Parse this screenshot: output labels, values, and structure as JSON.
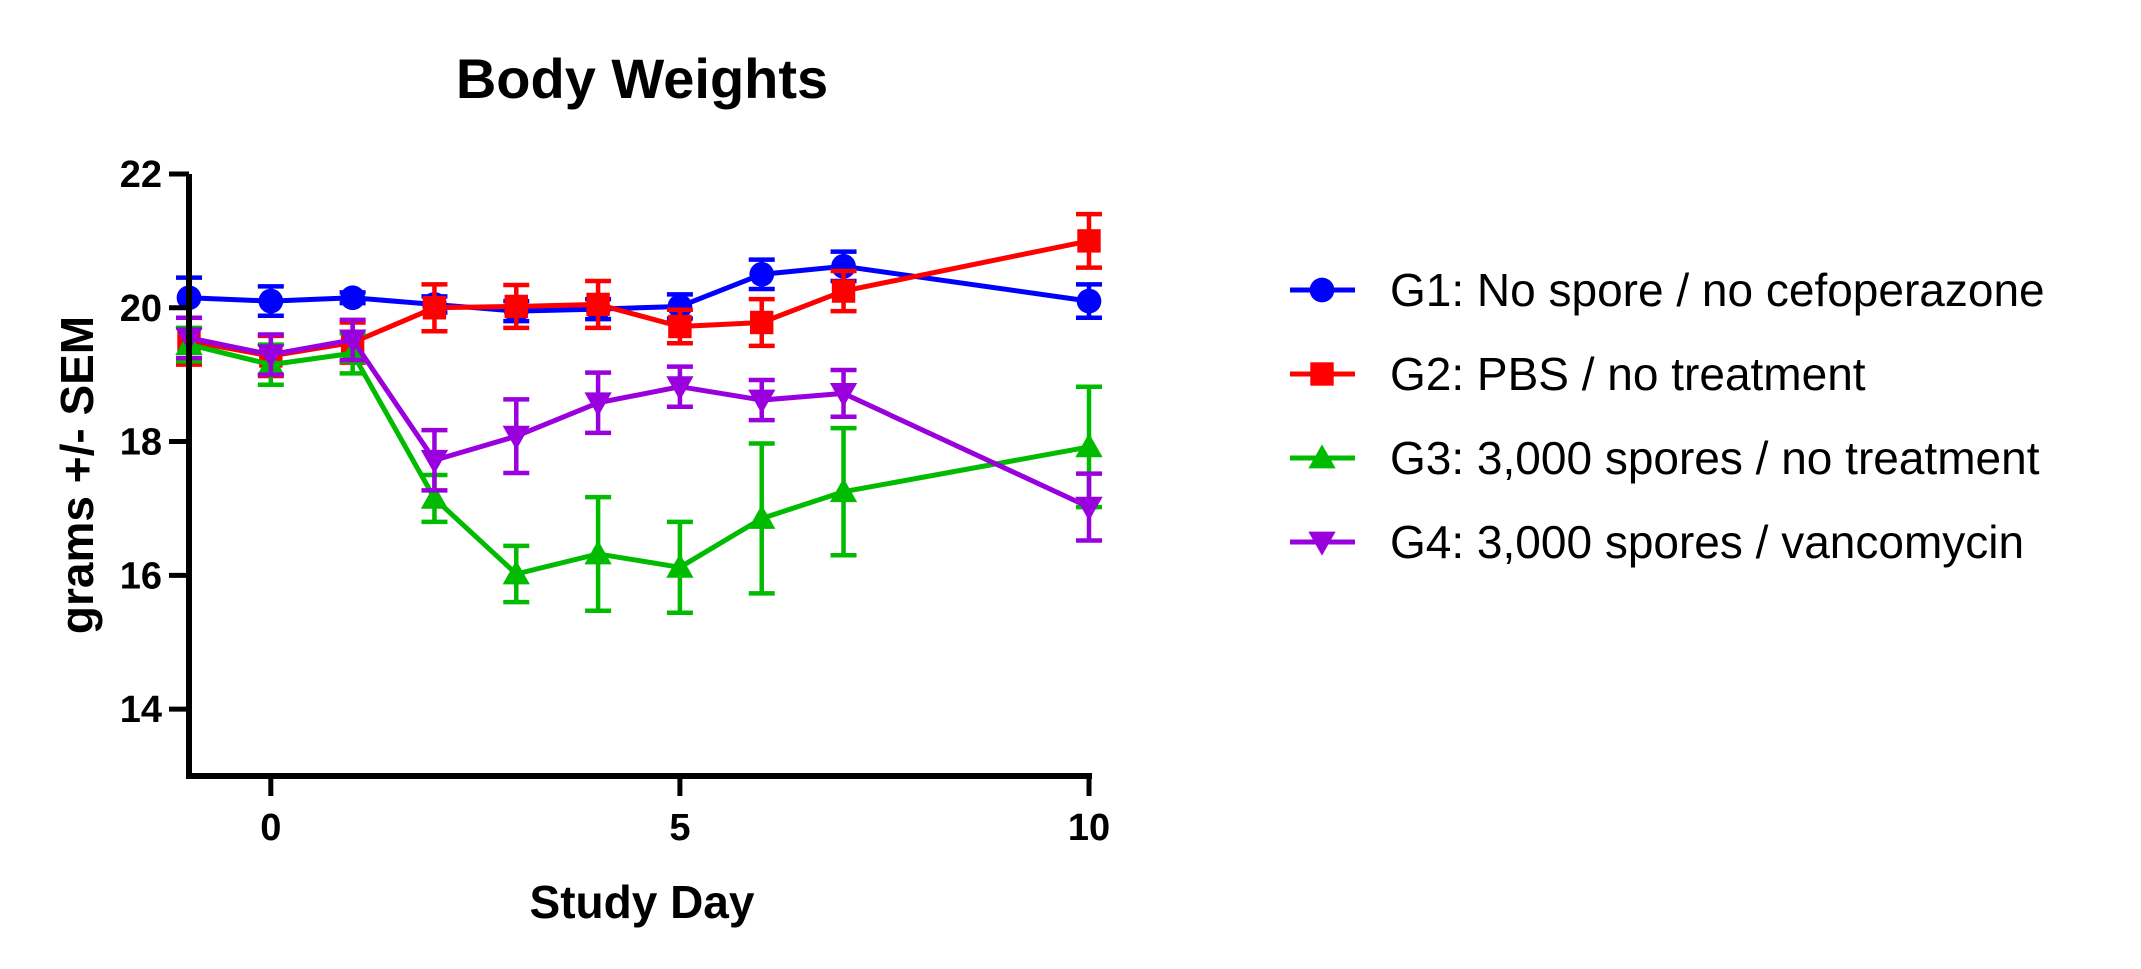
{
  "chart_data": {
    "type": "line",
    "title": "Body Weights",
    "xlabel": "Study Day",
    "ylabel": "grams +/- SEM",
    "xlim": [
      -1,
      10
    ],
    "ylim": [
      13,
      22
    ],
    "xticks": [
      0,
      5,
      10
    ],
    "yticks": [
      14,
      16,
      18,
      20,
      22
    ],
    "x": [
      -1,
      0,
      1,
      2,
      3,
      4,
      5,
      6,
      7,
      10
    ],
    "legend_position": "right",
    "grid": false,
    "error_bars": "SEM",
    "series": [
      {
        "name": "G1: No spore / no cefoperazone",
        "color": "#0000ff",
        "marker": "circle",
        "values": [
          20.15,
          20.1,
          20.15,
          20.05,
          19.95,
          19.98,
          20.02,
          20.5,
          20.62,
          20.1
        ],
        "errors": [
          0.3,
          0.22,
          0.08,
          0.12,
          0.15,
          0.15,
          0.18,
          0.22,
          0.22,
          0.25
        ]
      },
      {
        "name": "G2: PBS / no treatment",
        "color": "#ff0000",
        "marker": "square",
        "values": [
          19.5,
          19.28,
          19.48,
          20.0,
          20.02,
          20.05,
          19.72,
          19.78,
          20.25,
          21.0
        ],
        "errors": [
          0.35,
          0.3,
          0.3,
          0.35,
          0.32,
          0.35,
          0.25,
          0.35,
          0.3,
          0.4
        ]
      },
      {
        "name": "G3: 3,000 spores / no treatment",
        "color": "#00bb00",
        "marker": "triangle-up",
        "values": [
          19.45,
          19.15,
          19.32,
          17.15,
          16.02,
          16.32,
          16.12,
          16.85,
          17.25,
          17.92
        ],
        "errors": [
          0.25,
          0.3,
          0.3,
          0.35,
          0.42,
          0.85,
          0.68,
          1.12,
          0.95,
          0.9
        ]
      },
      {
        "name": "G4: 3,000 spores / vancomycin",
        "color": "#9900dd",
        "marker": "triangle-down",
        "values": [
          19.55,
          19.3,
          19.52,
          17.72,
          18.08,
          18.58,
          18.82,
          18.62,
          18.72,
          17.02
        ],
        "errors": [
          0.3,
          0.3,
          0.3,
          0.45,
          0.55,
          0.45,
          0.3,
          0.3,
          0.35,
          0.5
        ]
      }
    ]
  }
}
